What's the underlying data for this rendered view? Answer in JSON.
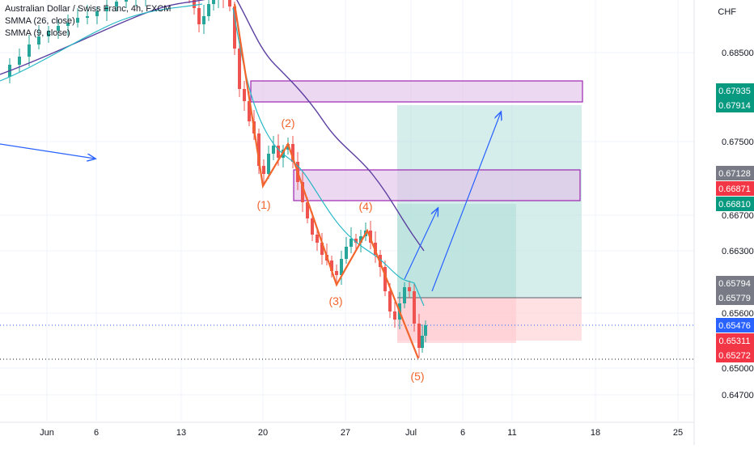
{
  "header": {
    "symbol_line": "Australian Dollar / Swiss Franc, 4h, FXCM",
    "indicator_1": "SMMA (26, close)",
    "indicator_2": "SMMA (9, close)",
    "currency": "CHF"
  },
  "colors": {
    "candle_up": "#26a69a",
    "candle_down": "#ef5350",
    "smma_26": "#5b3fa0",
    "smma_9": "#26b8c4",
    "wave": "#f2652d",
    "arrow": "#2962ff",
    "zone_fill": "#e1bee7",
    "zone_border": "#9c27b0",
    "target_fill": "#b2dfdb",
    "stop_fill": "#ffcdd2"
  },
  "chart_data": {
    "type": "candlestick",
    "y_ticks": [
      "0.68500",
      "0.67500",
      "0.66700",
      "0.66300",
      "0.65600",
      "0.65000",
      "0.64700"
    ],
    "x_ticks": [
      "Jun",
      "6",
      "13",
      "20",
      "27",
      "Jul",
      "6",
      "11",
      "18",
      "25"
    ],
    "price_badges": [
      {
        "label": "0.67935",
        "color": "#089981"
      },
      {
        "label": "0.67914",
        "color": "#089981"
      },
      {
        "label": "0.67128",
        "color": "#787b86"
      },
      {
        "label": "0.66871",
        "color": "#f23645"
      },
      {
        "label": "0.66810",
        "color": "#089981"
      },
      {
        "label": "0.65794",
        "color": "#787b86"
      },
      {
        "label": "0.65779",
        "color": "#787b86"
      },
      {
        "label": "0.65476",
        "color": "#2962ff"
      },
      {
        "label": "0.65311",
        "color": "#f23645"
      },
      {
        "label": "0.65272",
        "color": "#f23645"
      }
    ],
    "wave_labels": [
      "(1)",
      "(2)",
      "(3)",
      "(4)",
      "(5)"
    ],
    "zones": [
      {
        "name": "upper supply zone",
        "top": 0.68,
        "bottom": 0.6789,
        "from": "18 Jun",
        "to": "Jul 16"
      },
      {
        "name": "lower supply zone",
        "top": 0.6712,
        "bottom": 0.6681,
        "from": "22 Jun",
        "to": "Jul 16"
      }
    ],
    "positions": [
      {
        "entry": 0.6578,
        "target": 0.6791,
        "stop": 0.6532
      },
      {
        "entry": 0.6578,
        "target": 0.6681,
        "stop": 0.6532
      }
    ]
  }
}
